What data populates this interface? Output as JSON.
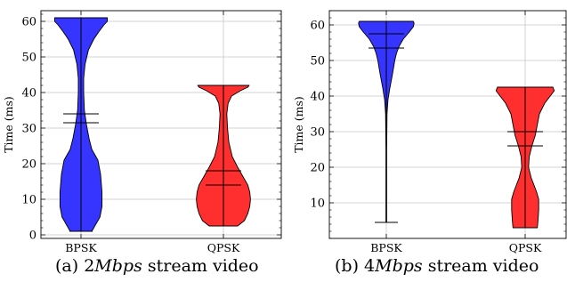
{
  "chart_data": [
    {
      "type": "violin",
      "ylabel": "Time (ms)",
      "ylim": [
        -1,
        63
      ],
      "yticks": [
        0,
        10,
        20,
        30,
        40,
        50,
        60
      ],
      "grid": true,
      "categories": [
        "BPSK",
        "QPSK"
      ],
      "caption_prefix": "(a) ",
      "caption_rate": "2",
      "caption_unit": "Mbps",
      "caption_suffix": " stream video",
      "series": [
        {
          "category": "BPSK",
          "color": "#3535ff",
          "min": 1,
          "max": 61,
          "mean": 34,
          "median": 31.5,
          "profile": [
            [
              1,
              0.32
            ],
            [
              3,
              0.44
            ],
            [
              5,
              0.56
            ],
            [
              8,
              0.62
            ],
            [
              12,
              0.62
            ],
            [
              17,
              0.58
            ],
            [
              21,
              0.5
            ],
            [
              24,
              0.32
            ],
            [
              27,
              0.24
            ],
            [
              31,
              0.16
            ],
            [
              35,
              0.1
            ],
            [
              40,
              0.08
            ],
            [
              44,
              0.08
            ],
            [
              48,
              0.12
            ],
            [
              52,
              0.22
            ],
            [
              55,
              0.38
            ],
            [
              57,
              0.52
            ],
            [
              59,
              0.68
            ],
            [
              60,
              0.78
            ],
            [
              61,
              0.78
            ]
          ]
        },
        {
          "category": "QPSK",
          "color": "#ff2f2f",
          "min": 2.5,
          "max": 42,
          "mean": 18,
          "median": 14,
          "profile": [
            [
              2.5,
              0.42
            ],
            [
              4,
              0.62
            ],
            [
              6,
              0.72
            ],
            [
              8,
              0.78
            ],
            [
              10,
              0.8
            ],
            [
              12,
              0.78
            ],
            [
              14,
              0.72
            ],
            [
              16,
              0.6
            ],
            [
              19,
              0.42
            ],
            [
              22,
              0.26
            ],
            [
              26,
              0.16
            ],
            [
              30,
              0.12
            ],
            [
              34,
              0.1
            ],
            [
              37,
              0.14
            ],
            [
              39,
              0.24
            ],
            [
              40.5,
              0.5
            ],
            [
              41.5,
              0.72
            ],
            [
              42,
              0.76
            ]
          ]
        }
      ]
    },
    {
      "type": "violin",
      "ylabel": "Time (ms)",
      "ylim": [
        0,
        64
      ],
      "yticks": [
        10,
        20,
        30,
        40,
        50,
        60
      ],
      "grid": true,
      "categories": [
        "BPSK",
        "QPSK"
      ],
      "caption_prefix": "(b) ",
      "caption_rate": "4",
      "caption_unit": "Mbps",
      "caption_suffix": " stream video",
      "series": [
        {
          "category": "BPSK",
          "color": "#3535ff",
          "min": 4.5,
          "max": 61,
          "mean": 57.5,
          "median": 53.5,
          "profile": [
            [
              4.5,
              0.01
            ],
            [
              15,
              0.01
            ],
            [
              25,
              0.01
            ],
            [
              35,
              0.02
            ],
            [
              39,
              0.05
            ],
            [
              42,
              0.1
            ],
            [
              46,
              0.18
            ],
            [
              50,
              0.25
            ],
            [
              52,
              0.3
            ],
            [
              54,
              0.38
            ],
            [
              56,
              0.5
            ],
            [
              58,
              0.68
            ],
            [
              59.5,
              0.8
            ],
            [
              60.5,
              0.82
            ],
            [
              61,
              0.8
            ]
          ]
        },
        {
          "category": "QPSK",
          "color": "#ff2f2f",
          "min": 3,
          "max": 42.5,
          "mean": 30,
          "median": 26,
          "profile": [
            [
              3,
              0.36
            ],
            [
              5,
              0.38
            ],
            [
              8,
              0.4
            ],
            [
              11,
              0.4
            ],
            [
              13,
              0.34
            ],
            [
              15,
              0.26
            ],
            [
              17,
              0.18
            ],
            [
              20,
              0.1
            ],
            [
              23,
              0.12
            ],
            [
              26,
              0.2
            ],
            [
              29,
              0.3
            ],
            [
              32,
              0.36
            ],
            [
              35,
              0.42
            ],
            [
              38,
              0.58
            ],
            [
              40,
              0.74
            ],
            [
              41.5,
              0.86
            ],
            [
              42.5,
              0.82
            ]
          ]
        }
      ]
    }
  ]
}
